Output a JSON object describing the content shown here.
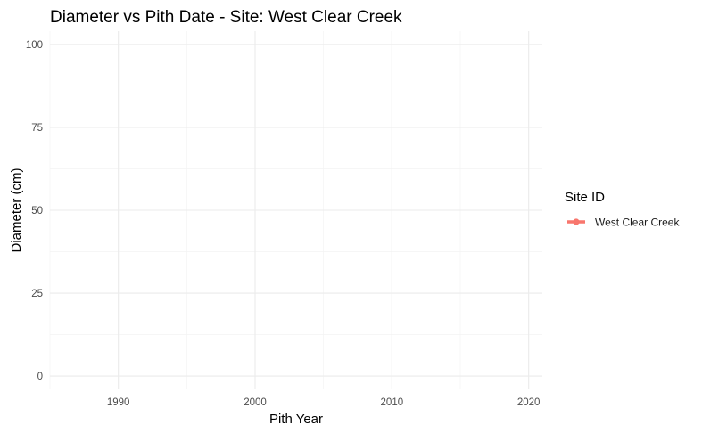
{
  "chart_data": {
    "type": "line",
    "title": "Diameter vs Pith Date - Site: West Clear Creek",
    "xlabel": "Pith Year",
    "ylabel": "Diameter (cm)",
    "xlim": [
      1985,
      2021
    ],
    "ylim": [
      -4,
      104
    ],
    "x_ticks": [
      1990,
      2000,
      2010,
      2020
    ],
    "y_ticks": [
      0,
      25,
      50,
      75,
      100
    ],
    "grid": true,
    "legend": {
      "title": "Site ID",
      "position": "right"
    },
    "series": [
      {
        "name": "West Clear Creek",
        "color": "#F8766D",
        "x": [],
        "y": []
      }
    ]
  }
}
